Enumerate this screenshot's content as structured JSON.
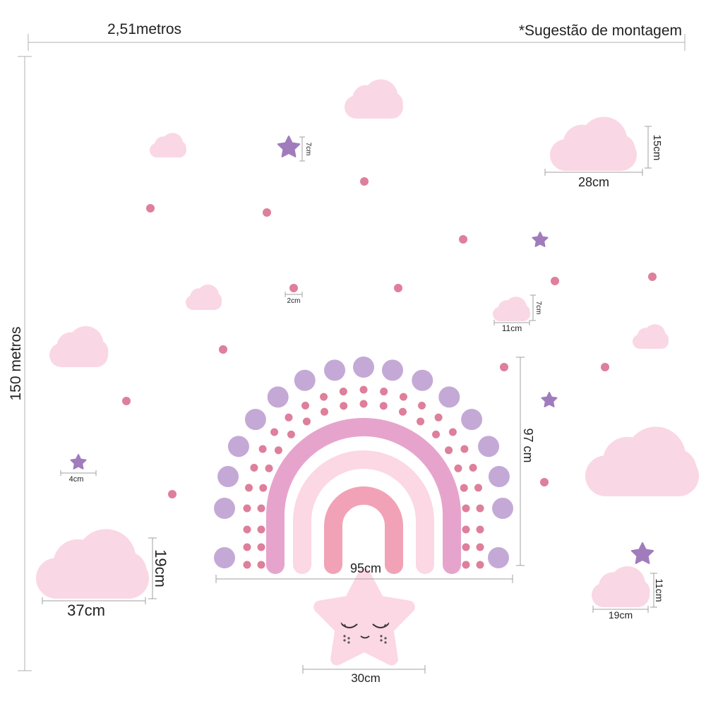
{
  "header": {
    "width_label": "2,51metros",
    "note": "*Sugestão de montagem"
  },
  "height_label": "150 metros",
  "dims": {
    "cloud_top_right_w": "28cm",
    "cloud_top_right_h": "15cm",
    "star_top_h": "7cm",
    "dot_size": "2cm",
    "cloud_small_w": "11cm",
    "cloud_small_h": "7cm",
    "star_small_w": "4cm",
    "rainbow_h": "97 cm",
    "rainbow_w": "95cm",
    "cloud_big_h": "19cm",
    "cloud_big_w": "37cm",
    "cloud_bottom_right_h": "11cm",
    "cloud_bottom_right_w": "19cm",
    "star_face_w": "30cm"
  },
  "colors": {
    "cloud": "#fad7e4",
    "dot": "#de7f9b",
    "star_purple": "#a07cbd",
    "big_circle": "#c4a9d6",
    "arc_outer": "#e6a4cd",
    "arc_middle": "#fcd7e4",
    "arc_inner": "#f2a2b6",
    "star_face": "#fcd7e4",
    "dim_line": "#a0a0a0"
  }
}
